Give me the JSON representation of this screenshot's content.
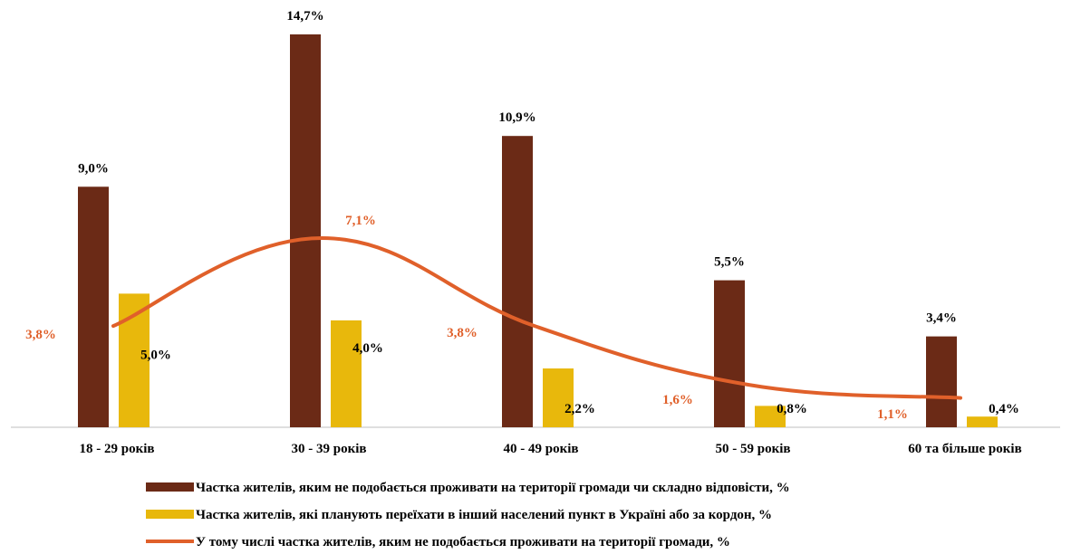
{
  "chart_data": {
    "type": "bar",
    "categories": [
      "18 - 29 років",
      "30 - 39 років",
      "40 - 49 років",
      "50 - 59 років",
      "60 та більше років"
    ],
    "series": [
      {
        "name": "Частка жителів, яким не подобається проживати на території громади чи складно відповісти, %",
        "kind": "bar",
        "color": "#6b2a16",
        "values": [
          9.0,
          14.7,
          10.9,
          5.5,
          3.4
        ],
        "labels": [
          "9,0%",
          "14,7%",
          "10,9%",
          "5,5%",
          "3,4%"
        ]
      },
      {
        "name": "Частка жителів, які планують переїхати в інший населений пункт в Україні або за кордон, %",
        "kind": "bar",
        "color": "#e8b80c",
        "values": [
          5.0,
          4.0,
          2.2,
          0.8,
          0.4
        ],
        "labels": [
          "5,0%",
          "4,0%",
          "2,2%",
          "0,8%",
          "0,4%"
        ]
      },
      {
        "name": "У тому числі частка жителів, яким не подобається проживати на території громади, %",
        "kind": "line",
        "color": "#e0602a",
        "values": [
          3.8,
          7.1,
          3.8,
          1.6,
          1.1
        ],
        "labels": [
          "3,8%",
          "7,1%",
          "3,8%",
          "1,6%",
          "1,1%"
        ]
      }
    ],
    "ylim": [
      0,
      15.5
    ],
    "grid": false,
    "legend": "bottom"
  }
}
